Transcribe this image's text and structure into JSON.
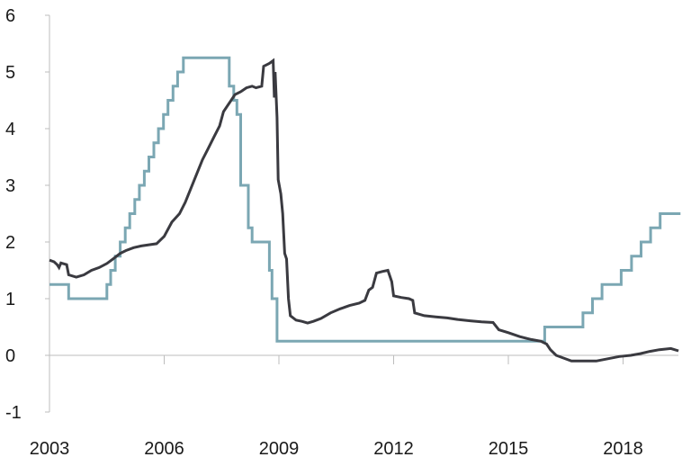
{
  "chart_data": {
    "type": "line",
    "title": "",
    "xlabel": "",
    "ylabel": "",
    "xlim": [
      2003,
      2019.5
    ],
    "ylim": [
      -1,
      6
    ],
    "x_ticks": [
      2003,
      2006,
      2009,
      2012,
      2015,
      2018
    ],
    "x_tick_labels": [
      "2003",
      "2006",
      "2009",
      "2012",
      "2015",
      "2018"
    ],
    "y_ticks": [
      -1,
      0,
      1,
      2,
      3,
      4,
      5,
      6
    ],
    "y_tick_labels": [
      "-1",
      "0",
      "1",
      "2",
      "3",
      "4",
      "5",
      "6"
    ],
    "grid": false,
    "legend": "none",
    "series": [
      {
        "color": "#7ba7b3",
        "step": true,
        "points": [
          [
            2003.0,
            1.25
          ],
          [
            2003.5,
            1.0
          ],
          [
            2004.5,
            1.25
          ],
          [
            2004.6,
            1.5
          ],
          [
            2004.72,
            1.75
          ],
          [
            2004.85,
            2.0
          ],
          [
            2004.98,
            2.25
          ],
          [
            2005.1,
            2.5
          ],
          [
            2005.23,
            2.75
          ],
          [
            2005.35,
            3.0
          ],
          [
            2005.48,
            3.25
          ],
          [
            2005.6,
            3.5
          ],
          [
            2005.73,
            3.75
          ],
          [
            2005.85,
            4.0
          ],
          [
            2005.98,
            4.25
          ],
          [
            2006.1,
            4.5
          ],
          [
            2006.23,
            4.75
          ],
          [
            2006.35,
            5.0
          ],
          [
            2006.5,
            5.25
          ],
          [
            2007.7,
            4.75
          ],
          [
            2007.82,
            4.5
          ],
          [
            2007.9,
            4.25
          ],
          [
            2008.0,
            3.0
          ],
          [
            2008.12,
            3.0
          ],
          [
            2008.2,
            2.25
          ],
          [
            2008.3,
            2.0
          ],
          [
            2008.75,
            1.5
          ],
          [
            2008.82,
            1.0
          ],
          [
            2008.95,
            0.25
          ],
          [
            2015.95,
            0.5
          ],
          [
            2016.95,
            0.75
          ],
          [
            2017.2,
            1.0
          ],
          [
            2017.45,
            1.25
          ],
          [
            2017.95,
            1.5
          ],
          [
            2018.22,
            1.75
          ],
          [
            2018.47,
            2.0
          ],
          [
            2018.72,
            2.25
          ],
          [
            2018.97,
            2.5
          ],
          [
            2019.5,
            2.5
          ]
        ]
      },
      {
        "color": "#3a3a40",
        "step": false,
        "points": [
          [
            2003.0,
            1.68
          ],
          [
            2003.12,
            1.65
          ],
          [
            2003.2,
            1.6
          ],
          [
            2003.25,
            1.55
          ],
          [
            2003.3,
            1.63
          ],
          [
            2003.45,
            1.6
          ],
          [
            2003.5,
            1.42
          ],
          [
            2003.7,
            1.38
          ],
          [
            2003.9,
            1.42
          ],
          [
            2004.1,
            1.5
          ],
          [
            2004.3,
            1.55
          ],
          [
            2004.5,
            1.62
          ],
          [
            2004.7,
            1.72
          ],
          [
            2004.85,
            1.8
          ],
          [
            2005.0,
            1.85
          ],
          [
            2005.2,
            1.9
          ],
          [
            2005.4,
            1.93
          ],
          [
            2005.6,
            1.95
          ],
          [
            2005.8,
            1.97
          ],
          [
            2006.0,
            2.1
          ],
          [
            2006.2,
            2.35
          ],
          [
            2006.4,
            2.5
          ],
          [
            2006.55,
            2.7
          ],
          [
            2006.7,
            2.95
          ],
          [
            2006.85,
            3.2
          ],
          [
            2007.0,
            3.45
          ],
          [
            2007.15,
            3.65
          ],
          [
            2007.3,
            3.85
          ],
          [
            2007.45,
            4.05
          ],
          [
            2007.55,
            4.3
          ],
          [
            2007.7,
            4.45
          ],
          [
            2007.85,
            4.6
          ],
          [
            2008.0,
            4.65
          ],
          [
            2008.15,
            4.72
          ],
          [
            2008.3,
            4.75
          ],
          [
            2008.4,
            4.72
          ],
          [
            2008.55,
            4.75
          ],
          [
            2008.6,
            5.1
          ],
          [
            2008.75,
            5.15
          ],
          [
            2008.85,
            5.2
          ],
          [
            2008.88,
            4.55
          ],
          [
            2008.9,
            5.0
          ],
          [
            2008.95,
            4.2
          ],
          [
            2008.98,
            3.1
          ],
          [
            2009.05,
            2.85
          ],
          [
            2009.1,
            2.5
          ],
          [
            2009.15,
            1.8
          ],
          [
            2009.2,
            1.7
          ],
          [
            2009.25,
            1.0
          ],
          [
            2009.3,
            0.7
          ],
          [
            2009.45,
            0.62
          ],
          [
            2009.6,
            0.6
          ],
          [
            2009.75,
            0.57
          ],
          [
            2009.9,
            0.6
          ],
          [
            2010.1,
            0.65
          ],
          [
            2010.35,
            0.75
          ],
          [
            2010.6,
            0.82
          ],
          [
            2010.85,
            0.88
          ],
          [
            2011.1,
            0.92
          ],
          [
            2011.25,
            0.97
          ],
          [
            2011.35,
            1.15
          ],
          [
            2011.45,
            1.2
          ],
          [
            2011.55,
            1.45
          ],
          [
            2011.7,
            1.48
          ],
          [
            2011.85,
            1.5
          ],
          [
            2011.95,
            1.3
          ],
          [
            2012.0,
            1.05
          ],
          [
            2012.2,
            1.02
          ],
          [
            2012.4,
            1.0
          ],
          [
            2012.5,
            0.97
          ],
          [
            2012.55,
            0.75
          ],
          [
            2012.8,
            0.7
          ],
          [
            2013.1,
            0.68
          ],
          [
            2013.4,
            0.66
          ],
          [
            2013.7,
            0.63
          ],
          [
            2014.0,
            0.61
          ],
          [
            2014.3,
            0.59
          ],
          [
            2014.6,
            0.58
          ],
          [
            2014.75,
            0.45
          ],
          [
            2015.0,
            0.4
          ],
          [
            2015.3,
            0.33
          ],
          [
            2015.6,
            0.28
          ],
          [
            2015.85,
            0.25
          ],
          [
            2016.0,
            0.2
          ],
          [
            2016.1,
            0.1
          ],
          [
            2016.25,
            0.0
          ],
          [
            2016.45,
            -0.05
          ],
          [
            2016.65,
            -0.1
          ],
          [
            2017.0,
            -0.1
          ],
          [
            2017.3,
            -0.1
          ],
          [
            2017.6,
            -0.06
          ],
          [
            2017.9,
            -0.02
          ],
          [
            2018.2,
            0.0
          ],
          [
            2018.45,
            0.03
          ],
          [
            2018.7,
            0.07
          ],
          [
            2018.95,
            0.1
          ],
          [
            2019.25,
            0.12
          ],
          [
            2019.45,
            0.08
          ]
        ]
      }
    ]
  },
  "colors": {
    "axis": "#bdbdbd",
    "text": "#1a1a1a"
  }
}
